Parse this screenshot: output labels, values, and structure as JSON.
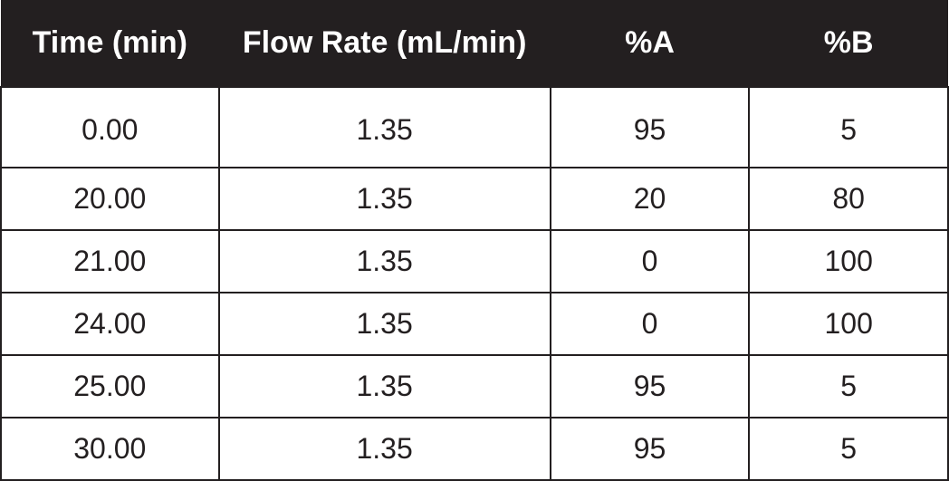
{
  "table": {
    "type": "table",
    "columns": [
      "Time (min)",
      "Flow Rate (mL/min)",
      "%A",
      "%B"
    ],
    "rows": [
      [
        "0.00",
        "1.35",
        "95",
        "5"
      ],
      [
        "20.00",
        "1.35",
        "20",
        "80"
      ],
      [
        "21.00",
        "1.35",
        "0",
        "100"
      ],
      [
        "24.00",
        "1.35",
        "0",
        "100"
      ],
      [
        "25.00",
        "1.35",
        "95",
        "5"
      ],
      [
        "30.00",
        "1.35",
        "95",
        "5"
      ]
    ],
    "header_bg": "#231f20",
    "header_text_color": "#ffffff",
    "header_fontsize": 34,
    "header_fontweight": "bold",
    "cell_bg": "#ffffff",
    "cell_text_color": "#231f20",
    "cell_fontsize": 32,
    "border_color": "#231f20",
    "border_width": 2,
    "column_widths_pct": [
      23,
      35,
      21,
      21
    ],
    "alignment": "center"
  }
}
